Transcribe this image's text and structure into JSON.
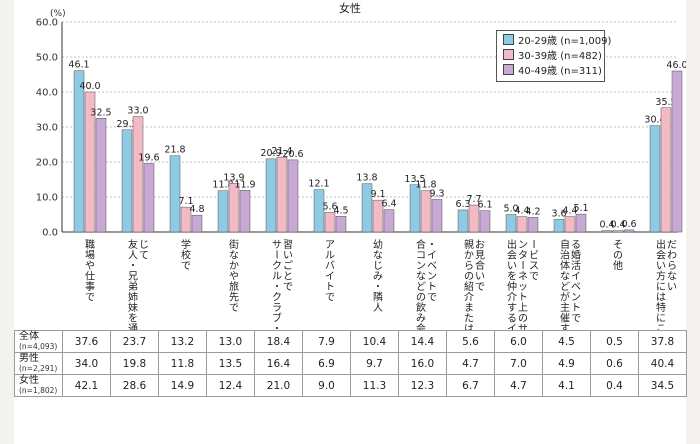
{
  "chart_data": {
    "type": "bar",
    "title": "女性",
    "y_unit": "(%)",
    "ylim": [
      0,
      60
    ],
    "yticks": [
      "0.0",
      "10.0",
      "20.0",
      "30.0",
      "40.0",
      "50.0",
      "60.0"
    ],
    "grid": true,
    "legend_position": "top-right",
    "categories": [
      "職場や仕事で",
      "友人・兄弟姉妹を通じて",
      "学校で",
      "街なかや旅先で",
      "サークル・クラブ・習いごとで",
      "アルバイトで",
      "幼なじみ・隣人",
      "合コンなどの飲み会・イベントで",
      "親からの紹介またはお見合いで",
      "出会いを仲介するインターネット上のサービスで",
      "自治体などが主催する婚活イベントで",
      "その他",
      "出会い方には特にこだわらない"
    ],
    "series": [
      {
        "name": "20-29歳 (n=1,009)",
        "color": "#8ecbe3",
        "values": [
          46.1,
          29.2,
          21.8,
          11.8,
          20.9,
          12.1,
          13.8,
          13.5,
          6.3,
          5.0,
          3.6,
          0.4,
          30.4
        ],
        "labels": [
          "46.1",
          "29.2",
          "21.8",
          "11.8",
          "20.9",
          "12.1",
          "13.8",
          "13.5",
          "6.3",
          "5.0",
          "3.6",
          "0.4",
          "30.4"
        ]
      },
      {
        "name": "30-39歳 (n=482)",
        "color": "#f2b9c6",
        "values": [
          40.0,
          33.0,
          7.1,
          13.9,
          21.4,
          5.6,
          9.1,
          11.8,
          7.7,
          4.4,
          4.4,
          0.4,
          35.5
        ],
        "labels": [
          "40.0",
          "33.0",
          "7.1",
          "13.9",
          "21.4",
          "5.6",
          "9.1",
          "11.8",
          "7.7",
          "4.4",
          "4.4",
          "0.4",
          "35.5"
        ]
      },
      {
        "name": "40-49歳 (n=311)",
        "color": "#c8a9d6",
        "values": [
          32.5,
          19.6,
          4.8,
          11.9,
          20.6,
          4.5,
          6.4,
          9.3,
          6.1,
          4.2,
          5.1,
          0.6,
          46.0
        ],
        "labels": [
          "32.5",
          "19.6",
          "4.8",
          "11.9",
          "20.6",
          "4.5",
          "6.4",
          "9.3",
          "6.1",
          "4.2",
          "5.1",
          "0.6",
          "46.0"
        ]
      }
    ]
  },
  "table": {
    "rows": [
      {
        "label": "全体",
        "n": "(n=4,093)",
        "values": [
          "37.6",
          "23.7",
          "13.2",
          "13.0",
          "18.4",
          "7.9",
          "10.4",
          "14.4",
          "5.6",
          "6.0",
          "4.5",
          "0.5",
          "37.8"
        ]
      },
      {
        "label": "男性",
        "n": "(n=2,291)",
        "values": [
          "34.0",
          "19.8",
          "11.8",
          "13.5",
          "16.4",
          "6.9",
          "9.7",
          "16.0",
          "4.7",
          "7.0",
          "4.9",
          "0.6",
          "40.4"
        ]
      },
      {
        "label": "女性",
        "n": "(n=1,802)",
        "values": [
          "42.1",
          "28.6",
          "14.9",
          "12.4",
          "21.0",
          "9.0",
          "11.3",
          "12.3",
          "6.7",
          "4.7",
          "4.1",
          "0.4",
          "34.5"
        ]
      }
    ]
  }
}
